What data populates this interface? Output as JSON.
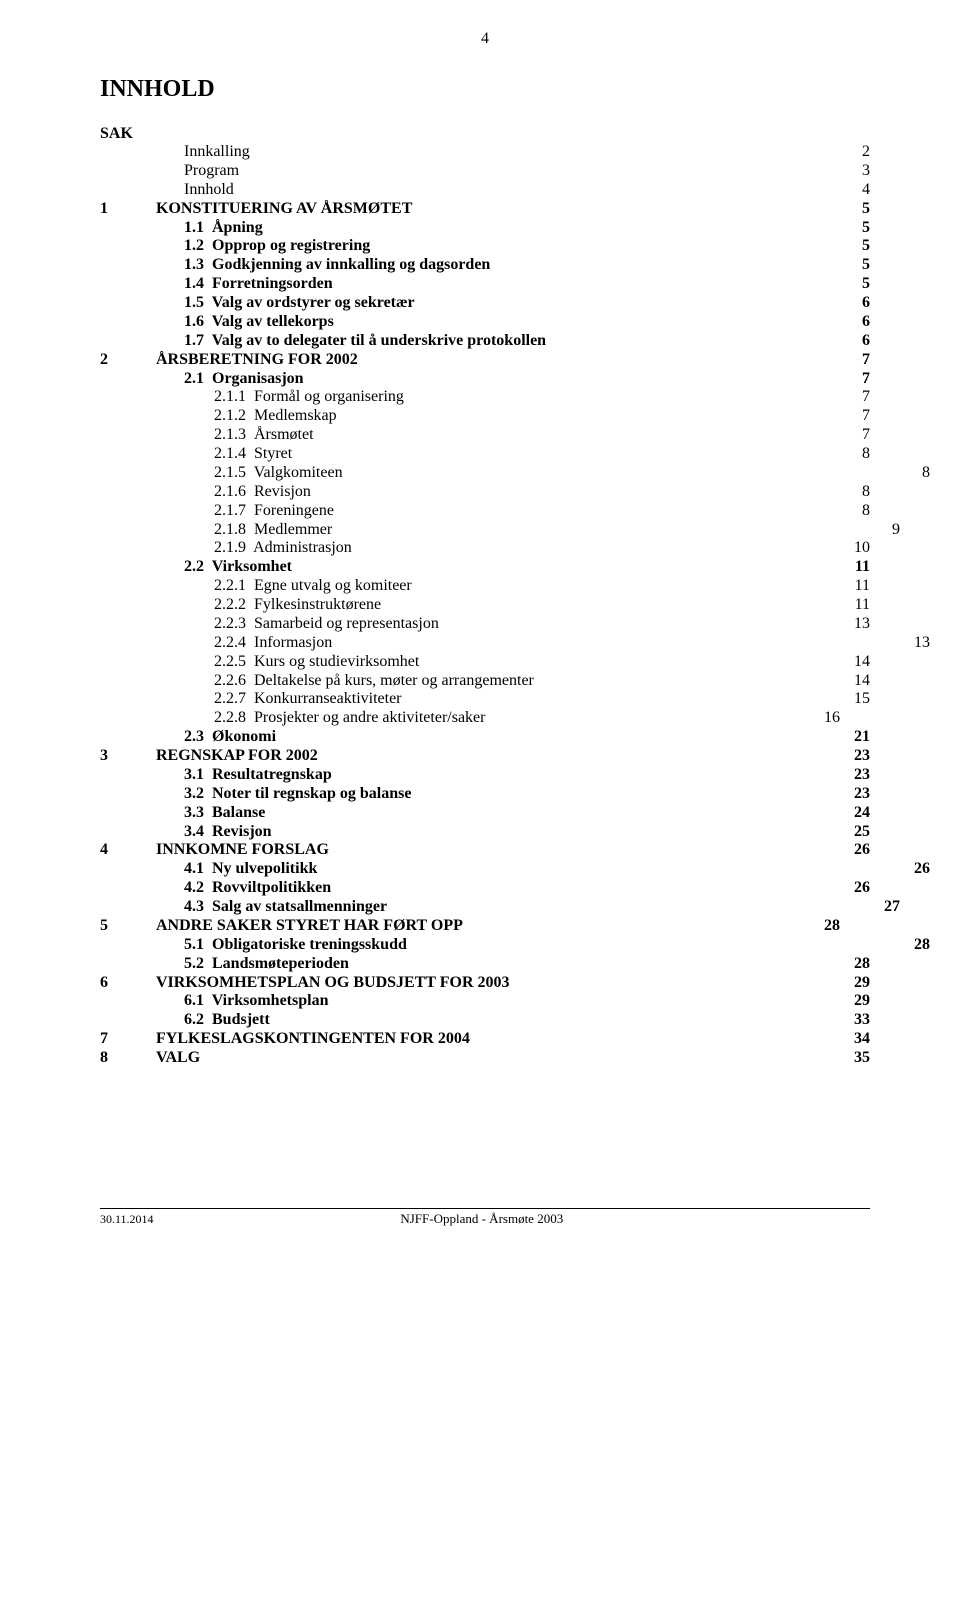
{
  "pageNumberTop": "4",
  "title": "INNHOLD",
  "sakLabel": "SAK",
  "footer": {
    "date": "30.11.2014",
    "center": "NJFF-Oppland - Årsmøte 2003"
  },
  "toc": [
    {
      "num": "",
      "text": "Innkalling",
      "page": "2",
      "indent": 1,
      "bold": false,
      "pageOffset": 0
    },
    {
      "num": "",
      "text": "Program",
      "page": "3",
      "indent": 1,
      "bold": false,
      "pageOffset": 0
    },
    {
      "num": "",
      "text": "Innhold",
      "page": "4",
      "indent": 1,
      "bold": false,
      "pageOffset": 0
    },
    {
      "num": "1",
      "text": "KONSTITUERING AV ÅRSMØTET",
      "page": "5",
      "indent": 0,
      "bold": true,
      "pageOffset": 0
    },
    {
      "num": "",
      "text": "1.1  Åpning",
      "page": "5",
      "indent": 2,
      "bold": true,
      "pageOffset": 0
    },
    {
      "num": "",
      "text": "1.2  Opprop og registrering",
      "page": "5",
      "indent": 2,
      "bold": true,
      "pageOffset": 0
    },
    {
      "num": "",
      "text": "1.3  Godkjenning av innkalling og dagsorden",
      "page": "5",
      "indent": 2,
      "bold": true,
      "pageOffset": 0
    },
    {
      "num": "",
      "text": "1.4  Forretningsorden",
      "page": "5",
      "indent": 2,
      "bold": true,
      "pageOffset": 0
    },
    {
      "num": "",
      "text": "1.5  Valg av ordstyrer og sekretær",
      "page": "6",
      "indent": 2,
      "bold": true,
      "pageOffset": 0
    },
    {
      "num": "",
      "text": "1.6  Valg av tellekorps",
      "page": "6",
      "indent": 2,
      "bold": true,
      "pageOffset": 0
    },
    {
      "num": "",
      "text": "1.7  Valg av to delegater til å underskrive protokollen",
      "page": "6",
      "indent": 2,
      "bold": true,
      "pageOffset": 0
    },
    {
      "num": "2",
      "text": "ÅRSBERETNING FOR 2002",
      "page": "7",
      "indent": 0,
      "bold": true,
      "pageOffset": 0
    },
    {
      "num": "",
      "text": "2.1  Organisasjon",
      "page": "7",
      "indent": 2,
      "bold": true,
      "pageOffset": 0
    },
    {
      "num": "",
      "text": "2.1.1  Formål og organisering",
      "page": "7",
      "indent": 3,
      "bold": false,
      "pageOffset": 0
    },
    {
      "num": "",
      "text": "2.1.2  Medlemskap",
      "page": "7",
      "indent": 3,
      "bold": false,
      "pageOffset": 0
    },
    {
      "num": "",
      "text": "2.1.3  Årsmøtet",
      "page": "7",
      "indent": 3,
      "bold": false,
      "pageOffset": 0
    },
    {
      "num": "",
      "text": "2.1.4  Styret",
      "page": "8",
      "indent": 3,
      "bold": false,
      "pageOffset": 0
    },
    {
      "num": "",
      "text": "2.1.5  Valgkomiteen",
      "page": "8",
      "indent": 3,
      "bold": false,
      "pageOffset": 60
    },
    {
      "num": "",
      "text": "2.1.6  Revisjon",
      "page": "8",
      "indent": 3,
      "bold": false,
      "pageOffset": 0
    },
    {
      "num": "",
      "text": "2.1.7  Foreningene",
      "page": "8",
      "indent": 3,
      "bold": false,
      "pageOffset": 0
    },
    {
      "num": "",
      "text": "2.1.8  Medlemmer",
      "page": "9",
      "indent": 3,
      "bold": false,
      "pageOffset": 30
    },
    {
      "num": "",
      "text": "2.1.9  Administrasjon",
      "page": "10",
      "indent": 3,
      "bold": false,
      "pageOffset": 0
    },
    {
      "num": "",
      "text": "2.2  Virksomhet",
      "page": "11",
      "indent": 2,
      "bold": true,
      "pageOffset": 0
    },
    {
      "num": "",
      "text": "2.2.1  Egne utvalg og komiteer",
      "page": "11",
      "indent": 3,
      "bold": false,
      "pageOffset": 0
    },
    {
      "num": "",
      "text": "2.2.2  Fylkesinstruktørene",
      "page": "11",
      "indent": 3,
      "bold": false,
      "pageOffset": 0
    },
    {
      "num": "",
      "text": "2.2.3  Samarbeid og representasjon",
      "page": "13",
      "indent": 3,
      "bold": false,
      "pageOffset": 0
    },
    {
      "num": "",
      "text": "2.2.4  Informasjon",
      "page": "13",
      "indent": 3,
      "bold": false,
      "pageOffset": 60
    },
    {
      "num": "",
      "text": "2.2.5  Kurs og studievirksomhet",
      "page": "14",
      "indent": 3,
      "bold": false,
      "pageOffset": 0
    },
    {
      "num": "",
      "text": "2.2.6  Deltakelse på kurs, møter og arrangementer",
      "page": "14",
      "indent": 3,
      "bold": false,
      "pageOffset": 0
    },
    {
      "num": "",
      "text": "2.2.7  Konkurranseaktiviteter",
      "page": "15",
      "indent": 3,
      "bold": false,
      "pageOffset": 0
    },
    {
      "num": "",
      "text": "2.2.8  Prosjekter og andre aktiviteter/saker",
      "page": "16",
      "indent": 3,
      "bold": false,
      "pageOffset": -30
    },
    {
      "num": "",
      "text": "2.3  Økonomi",
      "page": "21",
      "indent": 2,
      "bold": true,
      "pageOffset": 0
    },
    {
      "num": "3",
      "text": "REGNSKAP FOR 2002",
      "page": "23",
      "indent": 0,
      "bold": true,
      "pageOffset": 0
    },
    {
      "num": "",
      "text": "3.1  Resultatregnskap",
      "page": "23",
      "indent": 2,
      "bold": true,
      "pageOffset": 0
    },
    {
      "num": "",
      "text": "3.2  Noter til regnskap og balanse",
      "page": "23",
      "indent": 2,
      "bold": true,
      "pageOffset": 0
    },
    {
      "num": "",
      "text": "3.3  Balanse",
      "page": "24",
      "indent": 2,
      "bold": true,
      "pageOffset": 0
    },
    {
      "num": "",
      "text": "3.4  Revisjon",
      "page": "25",
      "indent": 2,
      "bold": true,
      "pageOffset": 0
    },
    {
      "num": "4",
      "text": "INNKOMNE FORSLAG",
      "page": "26",
      "indent": 0,
      "bold": true,
      "pageOffset": 0
    },
    {
      "num": "",
      "text": "4.1  Ny ulvepolitikk",
      "page": "26",
      "indent": 2,
      "bold": true,
      "pageOffset": 60
    },
    {
      "num": "",
      "text": "4.2  Rovviltpolitikken",
      "page": "26",
      "indent": 2,
      "bold": true,
      "pageOffset": 0
    },
    {
      "num": "",
      "text": "4.3  Salg av statsallmenninger",
      "page": "27",
      "indent": 2,
      "bold": true,
      "pageOffset": 30
    },
    {
      "num": "5",
      "text": "ANDRE SAKER STYRET HAR FØRT OPP",
      "page": "28",
      "indent": 0,
      "bold": true,
      "pageOffset": -30
    },
    {
      "num": "",
      "text": "5.1  Obligatoriske treningsskudd",
      "page": "28",
      "indent": 2,
      "bold": true,
      "pageOffset": 60
    },
    {
      "num": "",
      "text": "5.2  Landsmøteperioden",
      "page": "28",
      "indent": 2,
      "bold": true,
      "pageOffset": 0
    },
    {
      "num": "6",
      "text": "VIRKSOMHETSPLAN OG BUDSJETT FOR 2003",
      "page": "29",
      "indent": 0,
      "bold": true,
      "pageOffset": 0
    },
    {
      "num": "",
      "text": "6.1  Virksomhetsplan",
      "page": "29",
      "indent": 2,
      "bold": true,
      "pageOffset": 0
    },
    {
      "num": "",
      "text": "6.2  Budsjett",
      "page": "33",
      "indent": 2,
      "bold": true,
      "pageOffset": 0
    },
    {
      "num": "7",
      "text": "FYLKESLAGSKONTINGENTEN FOR 2004",
      "page": "34",
      "indent": 0,
      "bold": true,
      "pageOffset": 0
    },
    {
      "num": "8",
      "text": "VALG",
      "page": "35",
      "indent": 0,
      "bold": true,
      "pageOffset": 0
    }
  ]
}
